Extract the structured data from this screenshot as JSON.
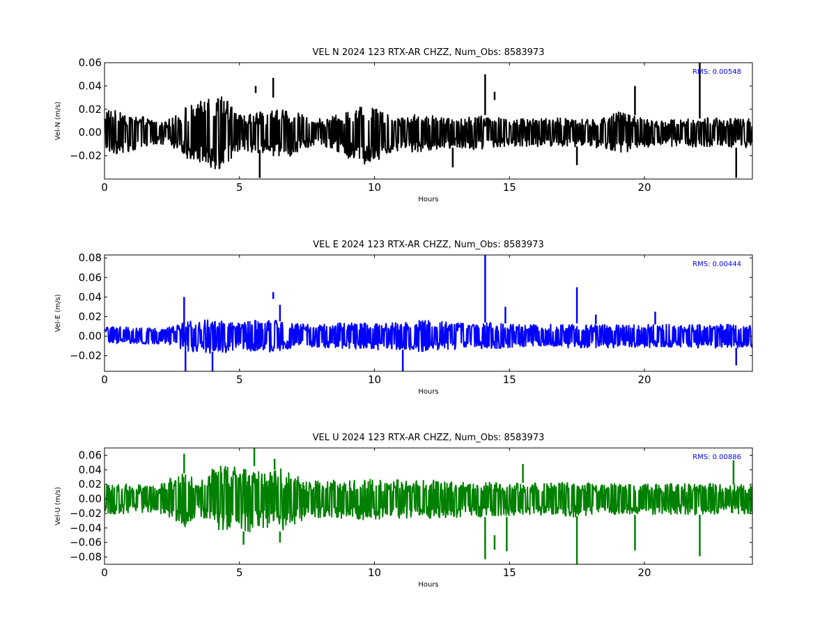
{
  "chart_data": [
    {
      "type": "line",
      "title": "VEL N 2024 123 RTX-AR  CHZZ, Num_Obs: 8583973",
      "xlabel": "Hours",
      "ylabel": "Vel-N (m/s)",
      "xlim": [
        0,
        24
      ],
      "ylim": [
        -0.04,
        0.06
      ],
      "xticks": [
        0,
        5,
        10,
        15,
        20
      ],
      "yticks": [
        -0.02,
        0.0,
        0.02,
        0.04,
        0.06
      ],
      "ytick_labels": [
        "−0.02",
        "0.00",
        "0.02",
        "0.04",
        "0.06"
      ],
      "rms_label": "RMS:  0.00548",
      "rms_color": "#0000ff",
      "line_color": "#000000",
      "grid": false,
      "envelope": {
        "x": [
          0,
          1,
          2,
          2.5,
          3,
          3.5,
          4,
          4.5,
          5,
          5.5,
          6,
          6.5,
          7,
          7.5,
          8,
          8.5,
          9,
          9.5,
          10,
          10.5,
          11,
          11.5,
          12,
          12.5,
          13,
          13.5,
          14,
          14.5,
          15,
          15.5,
          16,
          16.5,
          17,
          17.5,
          18,
          18.5,
          19,
          19.5,
          20,
          20.5,
          21,
          21.5,
          22,
          22.5,
          23,
          23.5,
          24
        ],
        "upper": [
          0.02,
          0.017,
          0.01,
          0.012,
          0.022,
          0.026,
          0.032,
          0.03,
          0.015,
          0.017,
          0.018,
          0.022,
          0.02,
          0.013,
          0.012,
          0.014,
          0.02,
          0.028,
          0.026,
          0.016,
          0.014,
          0.016,
          0.015,
          0.013,
          0.012,
          0.013,
          0.015,
          0.014,
          0.011,
          0.012,
          0.012,
          0.013,
          0.013,
          0.012,
          0.011,
          0.014,
          0.018,
          0.016,
          0.012,
          0.011,
          0.011,
          0.012,
          0.013,
          0.013,
          0.012,
          0.012,
          0.012
        ],
        "lower": [
          -0.02,
          -0.016,
          -0.01,
          -0.012,
          -0.022,
          -0.025,
          -0.032,
          -0.03,
          -0.015,
          -0.018,
          -0.018,
          -0.022,
          -0.02,
          -0.013,
          -0.012,
          -0.015,
          -0.022,
          -0.028,
          -0.028,
          -0.018,
          -0.016,
          -0.017,
          -0.016,
          -0.014,
          -0.013,
          -0.014,
          -0.016,
          -0.014,
          -0.012,
          -0.012,
          -0.012,
          -0.013,
          -0.013,
          -0.013,
          -0.012,
          -0.015,
          -0.018,
          -0.016,
          -0.013,
          -0.012,
          -0.012,
          -0.012,
          -0.013,
          -0.013,
          -0.013,
          -0.013,
          -0.013
        ]
      },
      "spikes": [
        {
          "x": 5.6,
          "y": 0.04,
          "y0": 0.034
        },
        {
          "x": 5.75,
          "y": -0.039,
          "y0": -0.015
        },
        {
          "x": 6.25,
          "y": 0.047,
          "y0": 0.03
        },
        {
          "x": 14.1,
          "y": 0.05,
          "y0": 0.015
        },
        {
          "x": 14.45,
          "y": 0.035,
          "y0": 0.028
        },
        {
          "x": 17.5,
          "y": -0.028,
          "y0": -0.012
        },
        {
          "x": 19.65,
          "y": 0.04,
          "y0": 0.015
        },
        {
          "x": 22.05,
          "y": 0.061,
          "y0": 0.012
        },
        {
          "x": 23.4,
          "y": -0.039,
          "y0": -0.013
        },
        {
          "x": 12.9,
          "y": -0.03,
          "y0": -0.013
        }
      ]
    },
    {
      "type": "line",
      "title": "VEL E 2024 123 RTX-AR  CHZZ, Num_Obs: 8583973",
      "xlabel": "Hours",
      "ylabel": "Vel-E (m/s)",
      "xlim": [
        0,
        24
      ],
      "ylim": [
        -0.036,
        0.083
      ],
      "xticks": [
        0,
        5,
        10,
        15,
        20
      ],
      "yticks": [
        -0.02,
        0.0,
        0.02,
        0.04,
        0.06,
        0.08
      ],
      "ytick_labels": [
        "−0.02",
        "0.00",
        "0.02",
        "0.04",
        "0.06",
        "0.08"
      ],
      "rms_label": "RMS:  0.00444",
      "rms_color": "#0000ff",
      "line_color": "#0000ff",
      "grid": false,
      "envelope": {
        "x": [
          0,
          1,
          2,
          2.5,
          3,
          3.5,
          4,
          4.5,
          5,
          5.5,
          6,
          6.5,
          7,
          7.5,
          8,
          8.5,
          9,
          9.5,
          10,
          10.5,
          11,
          11.5,
          12,
          12.5,
          13,
          13.5,
          14,
          14.5,
          15,
          15.5,
          16,
          16.5,
          17,
          17.5,
          18,
          18.5,
          19,
          19.5,
          20,
          20.5,
          21,
          21.5,
          22,
          22.5,
          23,
          23.5,
          24
        ],
        "upper": [
          0.01,
          0.009,
          0.008,
          0.01,
          0.016,
          0.016,
          0.017,
          0.017,
          0.015,
          0.016,
          0.016,
          0.017,
          0.013,
          0.012,
          0.012,
          0.014,
          0.014,
          0.014,
          0.014,
          0.014,
          0.015,
          0.016,
          0.016,
          0.015,
          0.014,
          0.013,
          0.014,
          0.014,
          0.013,
          0.012,
          0.012,
          0.012,
          0.013,
          0.012,
          0.012,
          0.012,
          0.012,
          0.012,
          0.012,
          0.012,
          0.012,
          0.012,
          0.012,
          0.012,
          0.012,
          0.012,
          0.012
        ],
        "lower": [
          -0.009,
          -0.008,
          -0.008,
          -0.01,
          -0.016,
          -0.016,
          -0.018,
          -0.017,
          -0.015,
          -0.016,
          -0.016,
          -0.017,
          -0.013,
          -0.012,
          -0.012,
          -0.013,
          -0.013,
          -0.014,
          -0.014,
          -0.014,
          -0.015,
          -0.016,
          -0.016,
          -0.015,
          -0.014,
          -0.013,
          -0.013,
          -0.013,
          -0.012,
          -0.011,
          -0.011,
          -0.011,
          -0.012,
          -0.012,
          -0.012,
          -0.012,
          -0.012,
          -0.012,
          -0.012,
          -0.012,
          -0.012,
          -0.012,
          -0.012,
          -0.012,
          -0.012,
          -0.012,
          -0.012
        ]
      },
      "spikes": [
        {
          "x": 2.95,
          "y": 0.04,
          "y0": 0.012
        },
        {
          "x": 3.0,
          "y": -0.036,
          "y0": -0.015
        },
        {
          "x": 4.0,
          "y": -0.036,
          "y0": -0.016
        },
        {
          "x": 6.25,
          "y": 0.045,
          "y0": 0.038
        },
        {
          "x": 6.5,
          "y": 0.032,
          "y0": 0.015
        },
        {
          "x": 11.05,
          "y": -0.036,
          "y0": -0.014
        },
        {
          "x": 14.1,
          "y": 0.083,
          "y0": 0.014
        },
        {
          "x": 14.85,
          "y": 0.03,
          "y0": 0.013
        },
        {
          "x": 17.5,
          "y": 0.05,
          "y0": 0.013
        },
        {
          "x": 18.2,
          "y": 0.022,
          "y0": 0.012
        },
        {
          "x": 20.4,
          "y": 0.025,
          "y0": 0.012
        },
        {
          "x": 23.4,
          "y": -0.03,
          "y0": -0.012
        }
      ]
    },
    {
      "type": "line",
      "title": "VEL U 2024 123 RTX-AR  CHZZ, Num_Obs: 8583973",
      "xlabel": "Hours",
      "ylabel": "Vel-U (m/s)",
      "xlim": [
        0,
        24
      ],
      "ylim": [
        -0.09,
        0.07
      ],
      "xticks": [
        0,
        5,
        10,
        15,
        20
      ],
      "yticks": [
        -0.08,
        -0.06,
        -0.04,
        -0.02,
        0.0,
        0.02,
        0.04,
        0.06
      ],
      "ytick_labels": [
        "−0.08",
        "−0.06",
        "−0.04",
        "−0.02",
        "0.00",
        "0.02",
        "0.04",
        "0.06"
      ],
      "rms_label": "RMS:  0.00886",
      "rms_color": "#0000ff",
      "line_color": "#008000",
      "grid": false,
      "envelope": {
        "x": [
          0,
          1,
          2,
          2.5,
          3,
          3.5,
          4,
          4.5,
          5,
          5.5,
          6,
          6.5,
          7,
          7.5,
          8,
          8.5,
          9,
          9.5,
          10,
          10.5,
          11,
          11.5,
          12,
          12.5,
          13,
          13.5,
          14,
          14.5,
          15,
          15.5,
          16,
          16.5,
          17,
          17.5,
          18,
          18.5,
          19,
          19.5,
          20,
          20.5,
          21,
          21.5,
          22,
          22.5,
          23,
          23.5,
          24
        ],
        "upper": [
          0.022,
          0.02,
          0.018,
          0.03,
          0.038,
          0.02,
          0.045,
          0.045,
          0.045,
          0.042,
          0.035,
          0.042,
          0.035,
          0.025,
          0.025,
          0.026,
          0.027,
          0.028,
          0.027,
          0.027,
          0.026,
          0.025,
          0.026,
          0.025,
          0.025,
          0.024,
          0.024,
          0.023,
          0.022,
          0.022,
          0.022,
          0.022,
          0.023,
          0.024,
          0.022,
          0.021,
          0.021,
          0.02,
          0.02,
          0.021,
          0.021,
          0.021,
          0.021,
          0.021,
          0.02,
          0.02,
          0.02
        ],
        "lower": [
          -0.022,
          -0.02,
          -0.018,
          -0.03,
          -0.04,
          -0.02,
          -0.045,
          -0.045,
          -0.048,
          -0.045,
          -0.04,
          -0.045,
          -0.036,
          -0.026,
          -0.026,
          -0.027,
          -0.028,
          -0.029,
          -0.028,
          -0.028,
          -0.027,
          -0.026,
          -0.027,
          -0.026,
          -0.026,
          -0.025,
          -0.025,
          -0.024,
          -0.023,
          -0.023,
          -0.023,
          -0.023,
          -0.024,
          -0.025,
          -0.023,
          -0.022,
          -0.022,
          -0.021,
          -0.021,
          -0.022,
          -0.022,
          -0.022,
          -0.022,
          -0.022,
          -0.021,
          -0.021,
          -0.021
        ]
      },
      "spikes": [
        {
          "x": 2.95,
          "y": 0.062,
          "y0": 0.035
        },
        {
          "x": 5.55,
          "y": 0.07,
          "y0": 0.045
        },
        {
          "x": 5.15,
          "y": -0.063,
          "y0": -0.045
        },
        {
          "x": 6.3,
          "y": 0.055,
          "y0": 0.04
        },
        {
          "x": 6.5,
          "y": -0.06,
          "y0": -0.045
        },
        {
          "x": 14.1,
          "y": -0.083,
          "y0": -0.025
        },
        {
          "x": 14.45,
          "y": -0.07,
          "y0": -0.05
        },
        {
          "x": 14.9,
          "y": -0.072,
          "y0": -0.025
        },
        {
          "x": 17.5,
          "y": -0.09,
          "y0": -0.024
        },
        {
          "x": 19.65,
          "y": -0.071,
          "y0": -0.022
        },
        {
          "x": 22.05,
          "y": -0.079,
          "y0": -0.022
        },
        {
          "x": 23.3,
          "y": 0.053,
          "y0": 0.02
        },
        {
          "x": 15.5,
          "y": 0.048,
          "y0": 0.022
        }
      ]
    }
  ]
}
